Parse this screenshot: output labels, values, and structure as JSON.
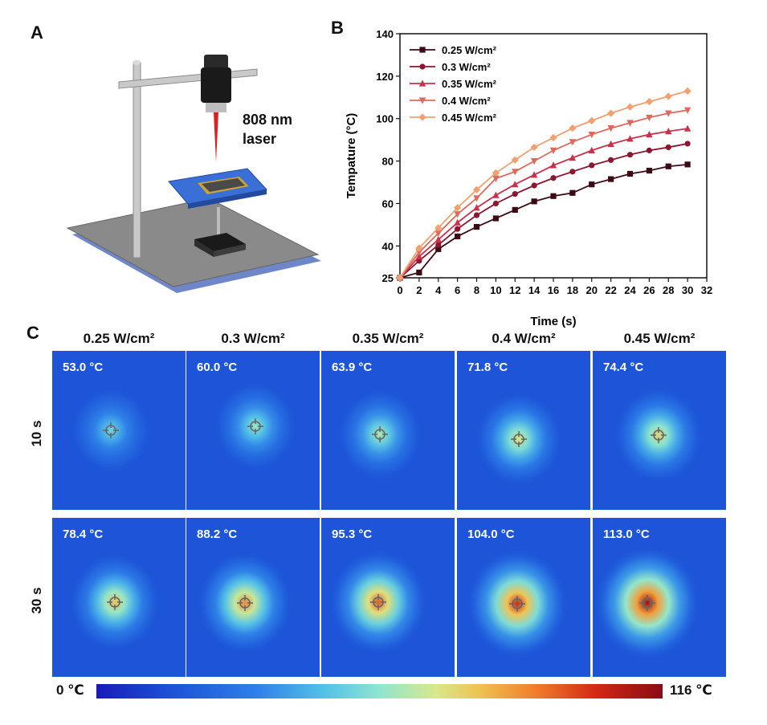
{
  "panels": {
    "a": "A",
    "b": "B",
    "c": "C"
  },
  "panel_a": {
    "laser_line1": "808 nm",
    "laser_line2": "laser"
  },
  "chart_data": {
    "type": "line",
    "title": "",
    "xlabel": "Time (s)",
    "ylabel": "Tempature (°C)",
    "xlim": [
      0,
      32
    ],
    "ylim": [
      25,
      140
    ],
    "xticks": [
      0,
      2,
      4,
      6,
      8,
      10,
      12,
      14,
      16,
      18,
      20,
      22,
      24,
      26,
      28,
      30,
      32
    ],
    "yticks": [
      25,
      40,
      60,
      80,
      100,
      120,
      140
    ],
    "x": [
      0,
      2,
      4,
      6,
      8,
      10,
      12,
      14,
      16,
      18,
      20,
      22,
      24,
      26,
      28,
      30
    ],
    "legend_position": "top-left",
    "series": [
      {
        "name": "0.25 W/cm²",
        "marker": "square",
        "color": "#3d0a14",
        "values": [
          25,
          27.5,
          38.5,
          44.5,
          49,
          53,
          57,
          61,
          63.5,
          65,
          69,
          71.5,
          74,
          75.5,
          77.5,
          78.4
        ]
      },
      {
        "name": "0.3 W/cm²",
        "marker": "circle",
        "color": "#8c1530",
        "values": [
          25,
          33,
          40.5,
          48,
          54.5,
          60,
          64.5,
          68.5,
          72,
          75,
          78,
          80.5,
          83,
          85,
          86.5,
          88.2
        ]
      },
      {
        "name": "0.35 W/cm²",
        "marker": "triangle-up",
        "color": "#c8324a",
        "values": [
          25,
          35,
          43,
          51,
          58,
          63.9,
          69,
          73.5,
          78,
          81.5,
          85,
          88,
          90.5,
          92.5,
          94,
          95.3
        ]
      },
      {
        "name": "0.4 W/cm²",
        "marker": "triangle-down",
        "color": "#e0685a",
        "values": [
          25,
          37,
          46,
          55,
          62.5,
          71.8,
          75,
          80,
          85,
          89,
          92.5,
          95.5,
          98,
          100.5,
          102.5,
          104.0
        ]
      },
      {
        "name": "0.45 W/cm²",
        "marker": "diamond",
        "color": "#f2a070",
        "values": [
          25,
          39,
          48.5,
          58,
          66.5,
          74.4,
          80.5,
          86.5,
          91,
          95.5,
          99,
          102.5,
          105.5,
          108,
          110.5,
          113.0
        ]
      }
    ]
  },
  "panel_c": {
    "columns": [
      "0.25 W/cm²",
      "0.3 W/cm²",
      "0.35 W/cm²",
      "0.4 W/cm²",
      "0.45 W/cm²"
    ],
    "rows": [
      {
        "label": "10 s",
        "temps": [
          "53.0 °C",
          "60.0 °C",
          "63.9 °C",
          "71.8 °C",
          "74.4 °C"
        ],
        "values": [
          53.0,
          60.0,
          63.9,
          71.8,
          74.4
        ]
      },
      {
        "label": "30 s",
        "temps": [
          "78.4 °C",
          "88.2 °C",
          "95.3 °C",
          "104.0 °C",
          "113.0 °C"
        ],
        "values": [
          78.4,
          88.2,
          95.3,
          104.0,
          113.0
        ]
      }
    ],
    "colorbar": {
      "min_label": "0 ℃",
      "max_label": "116 ℃",
      "min": 0,
      "max": 116
    }
  }
}
